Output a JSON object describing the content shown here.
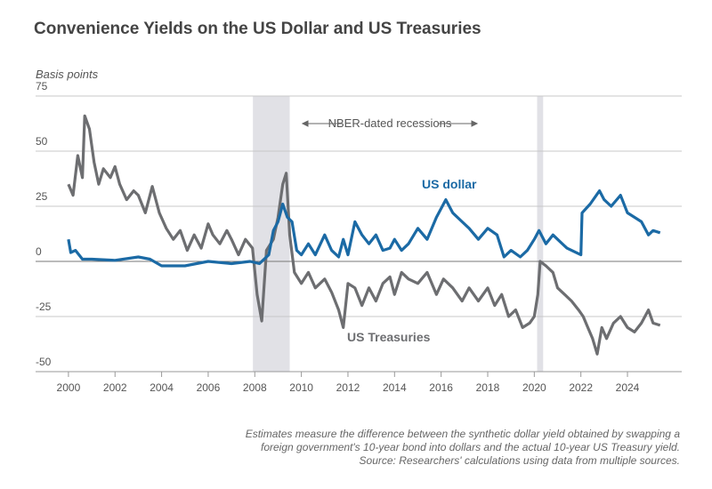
{
  "chart_data": {
    "type": "line",
    "title": "Convenience Yields on the US Dollar and US Treasuries",
    "y_label": "Basis points",
    "annotation": "NBER-dated recessions",
    "recessions": [
      [
        2007.92,
        2009.5
      ],
      [
        2020.12,
        2020.38
      ]
    ],
    "xlim": [
      1998.59,
      2026.33
    ],
    "ylim": [
      -50,
      75
    ],
    "xticks": [
      2000,
      2002,
      2004,
      2006,
      2008,
      2010,
      2012,
      2014,
      2016,
      2018,
      2020,
      2022,
      2024
    ],
    "yticks": [
      -50,
      -25,
      0,
      25,
      50,
      75
    ],
    "grid": true,
    "series": [
      {
        "name": "US Treasuries",
        "color": "#6d6e71",
        "x": [
          2000.0,
          2000.2,
          2000.4,
          2000.6,
          2000.7,
          2000.9,
          2001.1,
          2001.3,
          2001.5,
          2001.8,
          2002.0,
          2002.2,
          2002.5,
          2002.8,
          2003.0,
          2003.3,
          2003.6,
          2003.9,
          2004.2,
          2004.5,
          2004.8,
          2005.1,
          2005.4,
          2005.7,
          2006.0,
          2006.2,
          2006.5,
          2006.8,
          2007.0,
          2007.3,
          2007.6,
          2007.9,
          2008.1,
          2008.3,
          2008.5,
          2008.8,
          2009.0,
          2009.2,
          2009.35,
          2009.5,
          2009.7,
          2010.0,
          2010.3,
          2010.6,
          2011.0,
          2011.3,
          2011.6,
          2011.8,
          2012.0,
          2012.3,
          2012.6,
          2012.9,
          2013.2,
          2013.5,
          2013.8,
          2014.0,
          2014.3,
          2014.6,
          2015.0,
          2015.4,
          2015.8,
          2016.1,
          2016.5,
          2016.9,
          2017.2,
          2017.6,
          2018.0,
          2018.3,
          2018.6,
          2018.9,
          2019.2,
          2019.5,
          2019.8,
          2020.0,
          2020.15,
          2020.25,
          2020.5,
          2020.8,
          2021.0,
          2021.3,
          2021.6,
          2021.9,
          2022.1,
          2022.3,
          2022.5,
          2022.7,
          2022.9,
          2023.1,
          2023.4,
          2023.7,
          2024.0,
          2024.3,
          2024.6,
          2024.9,
          2025.1,
          2025.4
        ],
        "values": [
          35,
          30,
          48,
          38,
          66,
          60,
          45,
          35,
          42,
          38,
          43,
          35,
          28,
          32,
          30,
          22,
          34,
          22,
          15,
          10,
          14,
          5,
          12,
          6,
          17,
          12,
          8,
          14,
          10,
          3,
          10,
          6,
          -15,
          -27,
          5,
          10,
          20,
          35,
          40,
          12,
          -5,
          -10,
          -5,
          -12,
          -8,
          -14,
          -22,
          -30,
          -10,
          -12,
          -20,
          -12,
          -18,
          -10,
          -7,
          -15,
          -5,
          -8,
          -10,
          -5,
          -15,
          -8,
          -12,
          -18,
          -12,
          -18,
          -12,
          -20,
          -15,
          -25,
          -22,
          -30,
          -28,
          -25,
          -15,
          0,
          -2,
          -5,
          -12,
          -15,
          -18,
          -22,
          -25,
          -30,
          -35,
          -42,
          -30,
          -35,
          -28,
          -25,
          -30,
          -32,
          -28,
          -22,
          -28,
          -29
        ]
      },
      {
        "name": "US dollar",
        "color": "#1b6aa5",
        "x": [
          2000.0,
          2000.1,
          2000.3,
          2000.6,
          2001.0,
          2002.0,
          2003.0,
          2003.5,
          2004.0,
          2005.0,
          2006.0,
          2007.0,
          2007.8,
          2008.2,
          2008.6,
          2008.8,
          2009.0,
          2009.2,
          2009.4,
          2009.6,
          2009.8,
          2010.0,
          2010.3,
          2010.6,
          2011.0,
          2011.3,
          2011.6,
          2011.8,
          2012.0,
          2012.3,
          2012.6,
          2012.9,
          2013.2,
          2013.5,
          2013.8,
          2014.0,
          2014.3,
          2014.6,
          2015.0,
          2015.4,
          2015.8,
          2016.2,
          2016.5,
          2016.9,
          2017.2,
          2017.6,
          2018.0,
          2018.4,
          2018.7,
          2019.0,
          2019.4,
          2019.7,
          2020.0,
          2020.2,
          2020.5,
          2020.8,
          2021.0,
          2021.4,
          2021.8,
          2022.0,
          2022.05,
          2022.4,
          2022.8,
          2023.0,
          2023.3,
          2023.7,
          2024.0,
          2024.3,
          2024.6,
          2024.9,
          2025.1,
          2025.4
        ],
        "values": [
          10,
          4,
          5,
          1,
          1,
          0.5,
          2,
          1,
          -2,
          -2,
          0,
          -1,
          0,
          -1,
          3,
          14,
          18,
          26,
          20,
          18,
          5,
          3,
          8,
          3,
          12,
          5,
          2,
          10,
          3,
          18,
          12,
          8,
          12,
          5,
          6,
          10,
          5,
          8,
          15,
          10,
          20,
          28,
          22,
          18,
          15,
          10,
          15,
          12,
          2,
          5,
          2,
          5,
          10,
          14,
          8,
          12,
          10,
          6,
          4,
          3,
          22,
          26,
          32,
          28,
          25,
          30,
          22,
          20,
          18,
          12,
          14,
          13
        ]
      }
    ]
  },
  "footnote": [
    "Estimates measure the difference between the synthetic dollar yield obtained by swapping a",
    "foreign government's 10-year bond into dollars and the actual 10-year US Treasury yield.",
    "Source: Researchers' calculations using data from multiple sources."
  ]
}
